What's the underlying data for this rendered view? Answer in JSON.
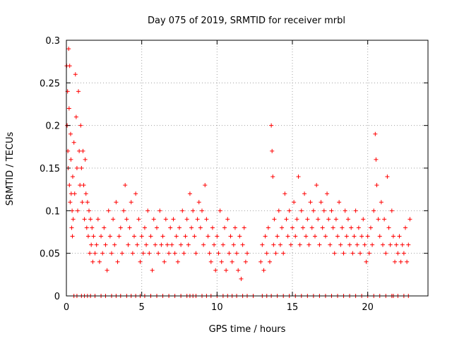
{
  "chart_data": {
    "type": "scatter",
    "title": "Day 075 of 2019, SRMTID for receiver mrbl",
    "xlabel": "GPS time / hours",
    "ylabel": "SRMTID / TECUs",
    "xlim": [
      0,
      24
    ],
    "ylim": [
      0,
      0.3
    ],
    "xticks": [
      0,
      5,
      10,
      15,
      20
    ],
    "xtick_labels": [
      "0",
      "5",
      "10",
      "15",
      "20"
    ],
    "yticks": [
      0,
      0.05,
      0.1,
      0.15,
      0.2,
      0.25,
      0.3
    ],
    "ytick_labels": [
      "0",
      "0.05",
      "0.1",
      "0.15",
      "0.2",
      "0.25",
      "0.3"
    ],
    "grid": true,
    "marker": "+",
    "color": "#ff0000",
    "series": [
      {
        "name": "SRMTID",
        "points": [
          [
            0.02,
            0.27
          ],
          [
            0.05,
            0.2
          ],
          [
            0.08,
            0.24
          ],
          [
            0.1,
            0.17
          ],
          [
            0.12,
            0.15
          ],
          [
            0.15,
            0.29
          ],
          [
            0.18,
            0.22
          ],
          [
            0.2,
            0.13
          ],
          [
            0.22,
            0.27
          ],
          [
            0.25,
            0.11
          ],
          [
            0.28,
            0.19
          ],
          [
            0.3,
            0.16
          ],
          [
            0.32,
            0.12
          ],
          [
            0.35,
            0.08
          ],
          [
            0.38,
            0.1
          ],
          [
            0.4,
            0.07
          ],
          [
            0.42,
            0.14
          ],
          [
            0.45,
            0.09
          ],
          [
            0.5,
            0.18
          ],
          [
            0.55,
            0.12
          ],
          [
            0.6,
            0.26
          ],
          [
            0.65,
            0.21
          ],
          [
            0.7,
            0.15
          ],
          [
            0.75,
            0.1
          ],
          [
            0.8,
            0.24
          ],
          [
            0.85,
            0.17
          ],
          [
            0.9,
            0.13
          ],
          [
            0.95,
            0.2
          ],
          [
            1.0,
            0.15
          ],
          [
            1.05,
            0.11
          ],
          [
            1.1,
            0.17
          ],
          [
            1.15,
            0.13
          ],
          [
            1.2,
            0.09
          ],
          [
            1.25,
            0.16
          ],
          [
            1.3,
            0.12
          ],
          [
            1.35,
            0.08
          ],
          [
            1.4,
            0.11
          ],
          [
            1.45,
            0.07
          ],
          [
            1.5,
            0.1
          ],
          [
            1.55,
            0.05
          ],
          [
            1.6,
            0.09
          ],
          [
            1.65,
            0.06
          ],
          [
            1.7,
            0.08
          ],
          [
            1.75,
            0.04
          ],
          [
            1.8,
            0.07
          ],
          [
            1.9,
            0.05
          ],
          [
            2.0,
            0.06
          ],
          [
            2.1,
            0.09
          ],
          [
            2.2,
            0.04
          ],
          [
            2.3,
            0.07
          ],
          [
            2.4,
            0.05
          ],
          [
            2.5,
            0.08
          ],
          [
            2.6,
            0.06
          ],
          [
            2.7,
            0.03
          ],
          [
            2.8,
            0.1
          ],
          [
            2.9,
            0.07
          ],
          [
            3.0,
            0.05
          ],
          [
            3.1,
            0.09
          ],
          [
            3.2,
            0.06
          ],
          [
            3.3,
            0.11
          ],
          [
            3.4,
            0.04
          ],
          [
            3.5,
            0.07
          ],
          [
            3.6,
            0.08
          ],
          [
            3.7,
            0.05
          ],
          [
            3.8,
            0.1
          ],
          [
            3.9,
            0.13
          ],
          [
            4.0,
            0.09
          ],
          [
            4.1,
            0.06
          ],
          [
            4.2,
            0.08
          ],
          [
            4.3,
            0.11
          ],
          [
            4.4,
            0.05
          ],
          [
            4.5,
            0.07
          ],
          [
            4.6,
            0.12
          ],
          [
            4.7,
            0.06
          ],
          [
            4.8,
            0.09
          ],
          [
            4.9,
            0.04
          ],
          [
            5.0,
            0.07
          ],
          [
            5.1,
            0.05
          ],
          [
            5.2,
            0.08
          ],
          [
            5.3,
            0.06
          ],
          [
            5.4,
            0.1
          ],
          [
            5.5,
            0.05
          ],
          [
            5.6,
            0.07
          ],
          [
            5.7,
            0.03
          ],
          [
            5.8,
            0.09
          ],
          [
            5.9,
            0.06
          ],
          [
            6.0,
            0.08
          ],
          [
            6.1,
            0.05
          ],
          [
            6.2,
            0.1
          ],
          [
            6.3,
            0.06
          ],
          [
            6.4,
            0.07
          ],
          [
            6.5,
            0.04
          ],
          [
            6.6,
            0.09
          ],
          [
            6.7,
            0.06
          ],
          [
            6.8,
            0.05
          ],
          [
            6.9,
            0.08
          ],
          [
            7.0,
            0.06
          ],
          [
            7.1,
            0.09
          ],
          [
            7.2,
            0.05
          ],
          [
            7.3,
            0.07
          ],
          [
            7.4,
            0.04
          ],
          [
            7.5,
            0.08
          ],
          [
            7.6,
            0.06
          ],
          [
            7.7,
            0.1
          ],
          [
            7.8,
            0.05
          ],
          [
            7.9,
            0.07
          ],
          [
            8.0,
            0.09
          ],
          [
            8.1,
            0.06
          ],
          [
            8.2,
            0.12
          ],
          [
            8.3,
            0.08
          ],
          [
            8.4,
            0.1
          ],
          [
            8.5,
            0.07
          ],
          [
            8.6,
            0.05
          ],
          [
            8.7,
            0.09
          ],
          [
            8.8,
            0.11
          ],
          [
            8.9,
            0.08
          ],
          [
            9.0,
            0.1
          ],
          [
            9.1,
            0.06
          ],
          [
            9.2,
            0.13
          ],
          [
            9.3,
            0.09
          ],
          [
            9.4,
            0.07
          ],
          [
            9.5,
            0.05
          ],
          [
            9.6,
            0.04
          ],
          [
            9.7,
            0.08
          ],
          [
            9.8,
            0.06
          ],
          [
            9.9,
            0.03
          ],
          [
            10.0,
            0.07
          ],
          [
            10.1,
            0.05
          ],
          [
            10.2,
            0.1
          ],
          [
            10.3,
            0.04
          ],
          [
            10.4,
            0.06
          ],
          [
            10.5,
            0.08
          ],
          [
            10.6,
            0.03
          ],
          [
            10.7,
            0.09
          ],
          [
            10.8,
            0.05
          ],
          [
            10.9,
            0.07
          ],
          [
            11.0,
            0.04
          ],
          [
            11.1,
            0.06
          ],
          [
            11.2,
            0.08
          ],
          [
            11.3,
            0.05
          ],
          [
            11.4,
            0.03
          ],
          [
            11.5,
            0.07
          ],
          [
            11.6,
            0.02
          ],
          [
            11.7,
            0.06
          ],
          [
            11.8,
            0.08
          ],
          [
            11.9,
            0.04
          ],
          [
            12.0,
            0.05
          ],
          [
            12.9,
            0.04
          ],
          [
            13.0,
            0.06
          ],
          [
            13.1,
            0.03
          ],
          [
            13.2,
            0.07
          ],
          [
            13.3,
            0.05
          ],
          [
            13.4,
            0.08
          ],
          [
            13.5,
            0.04
          ],
          [
            13.6,
            0.2
          ],
          [
            13.65,
            0.17
          ],
          [
            13.7,
            0.14
          ],
          [
            13.75,
            0.06
          ],
          [
            13.8,
            0.09
          ],
          [
            13.9,
            0.05
          ],
          [
            14.0,
            0.07
          ],
          [
            14.1,
            0.1
          ],
          [
            14.2,
            0.06
          ],
          [
            14.3,
            0.08
          ],
          [
            14.4,
            0.05
          ],
          [
            14.5,
            0.12
          ],
          [
            14.6,
            0.09
          ],
          [
            14.7,
            0.07
          ],
          [
            14.8,
            0.1
          ],
          [
            14.9,
            0.06
          ],
          [
            15.0,
            0.08
          ],
          [
            15.1,
            0.11
          ],
          [
            15.2,
            0.07
          ],
          [
            15.3,
            0.09
          ],
          [
            15.4,
            0.14
          ],
          [
            15.5,
            0.06
          ],
          [
            15.6,
            0.1
          ],
          [
            15.7,
            0.08
          ],
          [
            15.8,
            0.12
          ],
          [
            15.9,
            0.07
          ],
          [
            16.0,
            0.09
          ],
          [
            16.1,
            0.06
          ],
          [
            16.2,
            0.11
          ],
          [
            16.3,
            0.08
          ],
          [
            16.4,
            0.1
          ],
          [
            16.5,
            0.07
          ],
          [
            16.6,
            0.13
          ],
          [
            16.7,
            0.09
          ],
          [
            16.8,
            0.06
          ],
          [
            16.9,
            0.11
          ],
          [
            17.0,
            0.08
          ],
          [
            17.1,
            0.1
          ],
          [
            17.2,
            0.07
          ],
          [
            17.3,
            0.12
          ],
          [
            17.4,
            0.09
          ],
          [
            17.5,
            0.06
          ],
          [
            17.6,
            0.1
          ],
          [
            17.7,
            0.08
          ],
          [
            17.8,
            0.05
          ],
          [
            17.9,
            0.09
          ],
          [
            18.0,
            0.07
          ],
          [
            18.1,
            0.11
          ],
          [
            18.2,
            0.06
          ],
          [
            18.3,
            0.08
          ],
          [
            18.4,
            0.05
          ],
          [
            18.5,
            0.1
          ],
          [
            18.6,
            0.07
          ],
          [
            18.7,
            0.09
          ],
          [
            18.8,
            0.06
          ],
          [
            18.9,
            0.08
          ],
          [
            19.0,
            0.05
          ],
          [
            19.1,
            0.07
          ],
          [
            19.2,
            0.1
          ],
          [
            19.3,
            0.06
          ],
          [
            19.4,
            0.08
          ],
          [
            19.5,
            0.05
          ],
          [
            19.6,
            0.07
          ],
          [
            19.7,
            0.09
          ],
          [
            19.8,
            0.06
          ],
          [
            19.9,
            0.04
          ],
          [
            20.0,
            0.07
          ],
          [
            20.1,
            0.05
          ],
          [
            20.2,
            0.08
          ],
          [
            20.3,
            0.06
          ],
          [
            20.4,
            0.1
          ],
          [
            20.5,
            0.19
          ],
          [
            20.55,
            0.16
          ],
          [
            20.6,
            0.13
          ],
          [
            20.7,
            0.09
          ],
          [
            20.8,
            0.07
          ],
          [
            20.9,
            0.11
          ],
          [
            21.0,
            0.06
          ],
          [
            21.1,
            0.09
          ],
          [
            21.2,
            0.05
          ],
          [
            21.3,
            0.14
          ],
          [
            21.4,
            0.08
          ],
          [
            21.5,
            0.06
          ],
          [
            21.6,
            0.1
          ],
          [
            21.7,
            0.07
          ],
          [
            21.8,
            0.04
          ],
          [
            21.9,
            0.06
          ],
          [
            22.0,
            0.05
          ],
          [
            22.1,
            0.07
          ],
          [
            22.2,
            0.04
          ],
          [
            22.3,
            0.06
          ],
          [
            22.4,
            0.05
          ],
          [
            22.5,
            0.08
          ],
          [
            22.6,
            0.04
          ],
          [
            22.7,
            0.06
          ],
          [
            22.8,
            0.09
          ]
        ]
      }
    ],
    "zero_points_x": [
      0.5,
      0.7,
      1.0,
      1.2,
      1.4,
      1.6,
      1.9,
      2.3,
      2.6,
      3.0,
      3.3,
      3.6,
      4.0,
      4.3,
      4.6,
      4.9,
      5.2,
      5.6,
      6.0,
      6.4,
      6.8,
      7.2,
      7.6,
      8.0,
      8.2,
      8.4,
      8.6,
      9.0,
      9.3,
      9.6,
      10.0,
      10.4,
      10.7,
      11.0,
      11.3,
      11.7,
      12.0,
      12.4,
      13.0,
      13.3,
      13.6,
      14.0,
      14.4,
      14.8,
      15.2,
      15.6,
      16.0,
      16.4,
      16.8,
      17.2,
      17.6,
      18.0,
      18.4,
      18.8,
      19.2,
      19.6,
      20.0,
      20.4,
      20.8,
      21.2,
      21.6,
      21.7,
      22.0,
      22.4,
      22.7
    ]
  }
}
